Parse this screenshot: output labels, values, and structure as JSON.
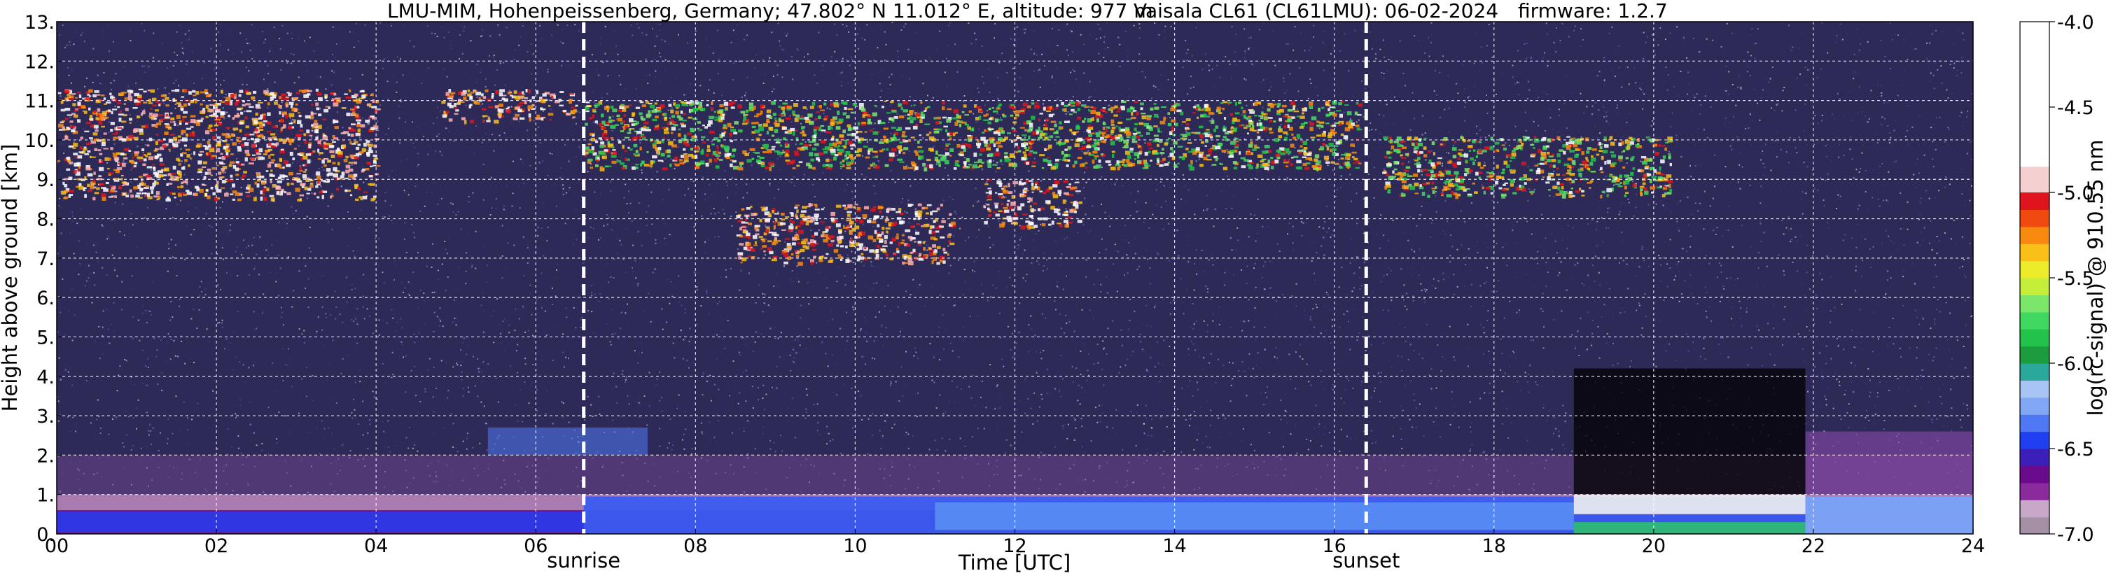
{
  "figure": {
    "title_station": "LMU-MIM, Hohenpeissenberg, Germany; 47.802° N 11.012° E, altitude: 977 m",
    "title_instrument": "Vaisala CL61 (CL61LMU): 06-02-2024",
    "title_firmware": "firmware: 1.2.7"
  },
  "chart_data": {
    "type": "heatmap",
    "xlabel": "Time [UTC]",
    "ylabel": "Height above ground [km]",
    "colorbar_label": "log(rc-signal) @ 910.55 nm",
    "xlim": [
      0,
      24
    ],
    "ylim": [
      0,
      13
    ],
    "x_ticks": [
      "00",
      "02",
      "04",
      "06",
      "08",
      "10",
      "12",
      "14",
      "16",
      "18",
      "20",
      "22",
      "24"
    ],
    "y_ticks": [
      "0.",
      "1.",
      "2.",
      "3.",
      "4.",
      "5.",
      "6.",
      "7.",
      "8.",
      "9.",
      "10.",
      "11.",
      "12.",
      "13."
    ],
    "grid": true,
    "colorbar_range": [
      -7.0,
      -4.0
    ],
    "colorbar_ticks": [
      "-4.0",
      "-4.5",
      "-5.0",
      "-5.5",
      "-6.0",
      "-6.5",
      "-7.0"
    ],
    "colorbar_ticks_values": [
      -4.0,
      -4.5,
      -5.0,
      -5.5,
      -6.0,
      -6.5,
      -7.0
    ],
    "colormap": [
      "#a491a6",
      "#c8a8c8",
      "#8a2a9c",
      "#6a0a8c",
      "#3b1fb8",
      "#1f3ff0",
      "#4f78f5",
      "#82a8f5",
      "#a8c4f5",
      "#2aa89a",
      "#1c9c3c",
      "#23c24a",
      "#40d860",
      "#7be66a",
      "#c4ee3a",
      "#ecec2a",
      "#f8c018",
      "#f88a10",
      "#f04a10",
      "#e0141c",
      "#ffffff"
    ],
    "events": [
      {
        "label": "sunrise",
        "time": 6.6
      },
      {
        "label": "sunset",
        "time": 16.4
      }
    ],
    "cloud_layers": [
      {
        "t0": 0.0,
        "t1": 4.0,
        "h0": 8.5,
        "h1": 11.3,
        "intensity": "high"
      },
      {
        "t0": 4.8,
        "t1": 6.5,
        "h0": 10.5,
        "h1": 11.3,
        "intensity": "high"
      },
      {
        "t0": 6.6,
        "t1": 16.3,
        "h0": 9.3,
        "h1": 11.0,
        "intensity": "medium"
      },
      {
        "t0": 8.5,
        "t1": 11.2,
        "h0": 6.9,
        "h1": 8.4,
        "intensity": "high"
      },
      {
        "t0": 11.6,
        "t1": 12.8,
        "h0": 7.8,
        "h1": 9.0,
        "intensity": "high"
      },
      {
        "t0": 16.6,
        "t1": 20.2,
        "h0": 8.6,
        "h1": 10.1,
        "intensity": "medium"
      }
    ]
  }
}
